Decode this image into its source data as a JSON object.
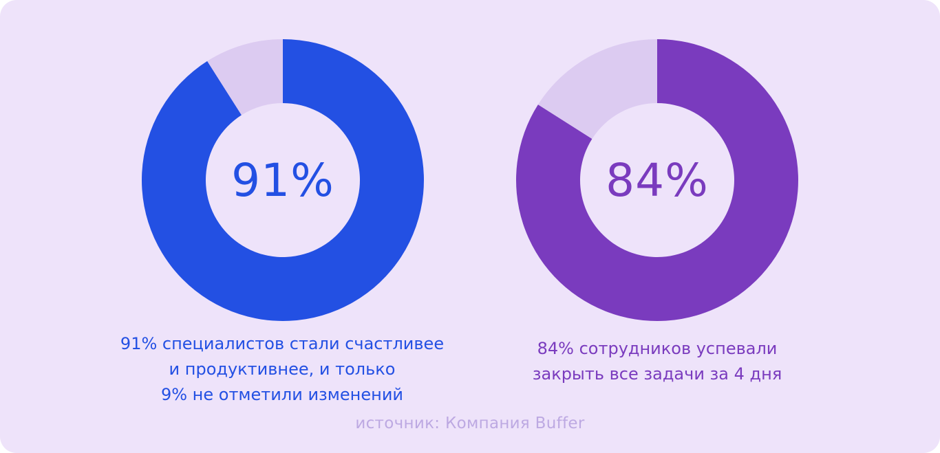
{
  "colors": {
    "background": "#EEE3FA",
    "remainder": "#DCCBF1",
    "blue": "#2350E3",
    "purple": "#7A3BBE",
    "source_text": "#BDA9E2"
  },
  "chart_data": [
    {
      "type": "pie",
      "style": "donut",
      "slices": [
        {
          "value": 91
        },
        {
          "value": 9
        }
      ],
      "center_label": "91%",
      "caption_lines": [
        "91% специалистов стали счастливее",
        "и продуктивнее, и только",
        "9% не отметили изменений"
      ],
      "color": "#2350E3",
      "remainder_color": "#DCCBF1"
    },
    {
      "type": "pie",
      "style": "donut",
      "slices": [
        {
          "value": 84
        },
        {
          "value": 16
        }
      ],
      "center_label": "84%",
      "caption_lines": [
        "84% сотрудников успевали",
        "закрыть все задачи за 4 дня"
      ],
      "color": "#7A3BBE",
      "remainder_color": "#DCCBF1"
    }
  ],
  "source": "источник: Компания Buffer"
}
